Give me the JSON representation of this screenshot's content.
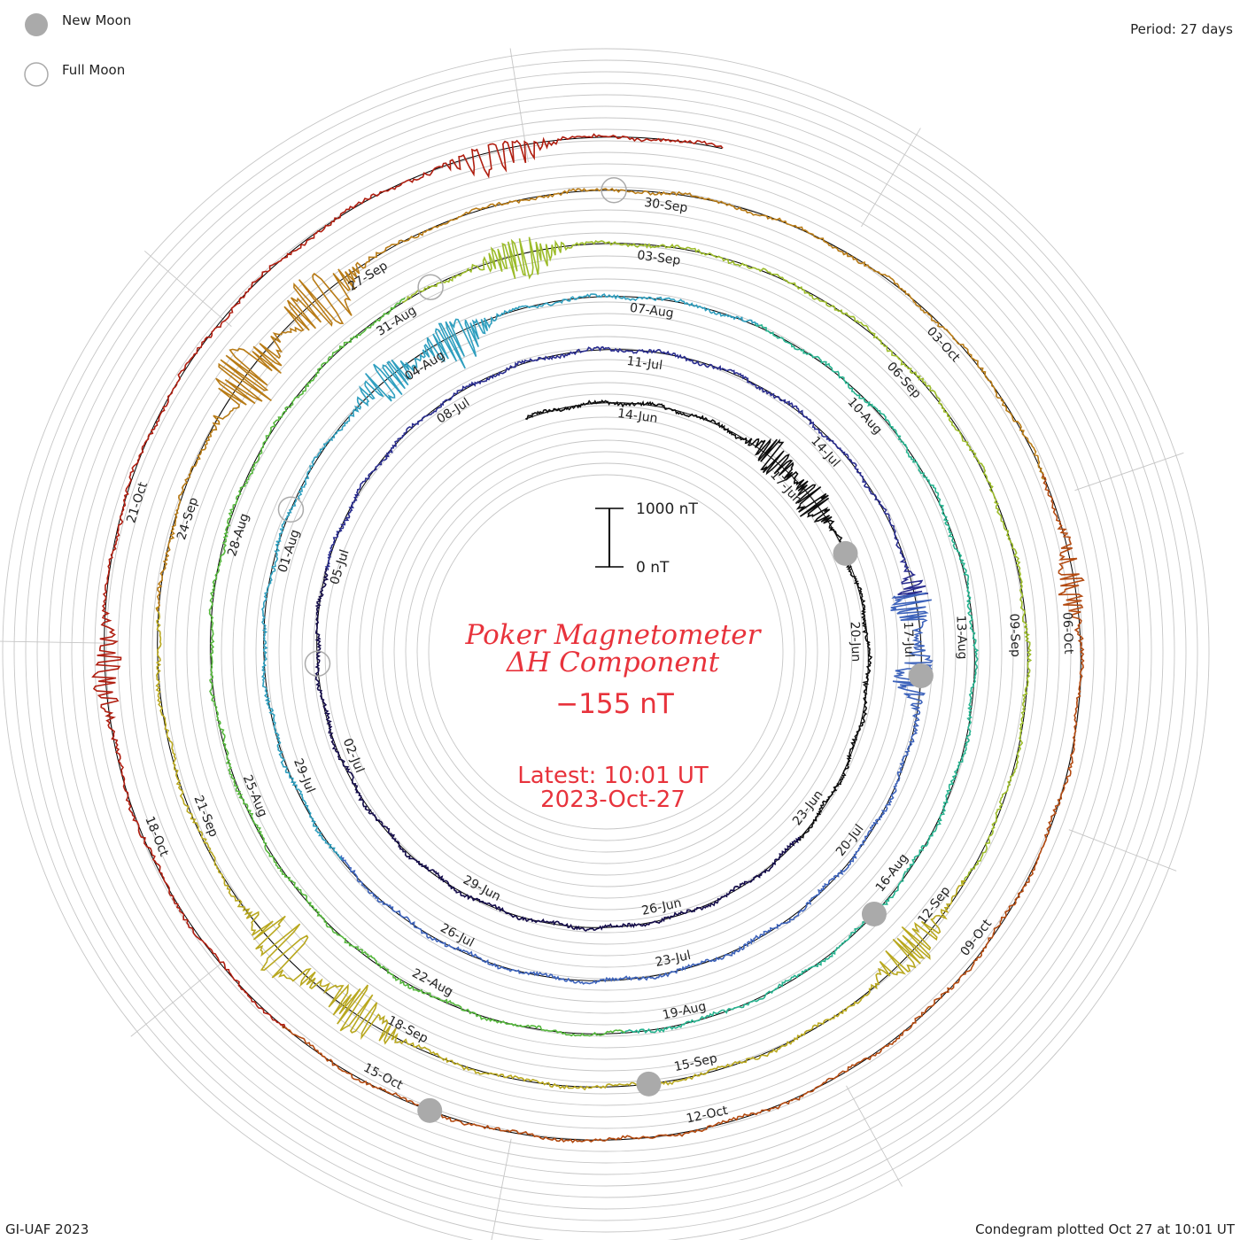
{
  "header": {
    "period_label": "Period: 27 days"
  },
  "legend": {
    "new_moon_label": "New Moon",
    "full_moon_label": "Full Moon",
    "new_moon_color": "#aaaaaa",
    "full_moon_color": "#aaaaaa"
  },
  "footer": {
    "credit": "GI-UAF 2023",
    "plotted": "Condegram plotted Oct 27 at 10:01 UT"
  },
  "center": {
    "title_line1": "Poker Magnetometer",
    "title_line2": "ΔH Component",
    "current_value": "−155 nT",
    "latest_line1": "Latest: 10:01 UT",
    "latest_line2": "2023-Oct-27",
    "text_color": "#e8333c"
  },
  "scale_bar": {
    "top_label": "1000 nT",
    "bottom_label": "0 nT"
  },
  "chart_data": {
    "type": "condegram",
    "title": "Poker Magnetometer ΔH Component",
    "period_days": 27,
    "start_date": "2023-06-12",
    "end_date": "2023-10-27",
    "latest_value_nT": -155,
    "scale_nT": [
      0,
      1000
    ],
    "date_labels": [
      "14-Jun",
      "17-Jun",
      "20-Jun",
      "23-Jun",
      "26-Jun",
      "29-Jun",
      "02-Jul",
      "05-Jul",
      "08-Jul",
      "11-Jul",
      "14-Jul",
      "17-Jul",
      "20-Jul",
      "23-Jul",
      "26-Jul",
      "29-Jul",
      "01-Aug",
      "04-Aug",
      "07-Aug",
      "10-Aug",
      "13-Aug",
      "16-Aug",
      "19-Aug",
      "22-Aug",
      "25-Aug",
      "28-Aug",
      "31-Aug",
      "03-Sep",
      "06-Sep",
      "09-Sep",
      "12-Sep",
      "15-Sep",
      "18-Sep",
      "21-Sep",
      "24-Sep",
      "27-Sep",
      "30-Sep",
      "03-Oct",
      "06-Oct",
      "09-Oct",
      "12-Oct",
      "15-Oct",
      "18-Oct",
      "21-Oct"
    ],
    "new_moons": [
      "2023-06-18",
      "2023-07-17",
      "2023-08-16",
      "2023-09-15",
      "2023-10-14"
    ],
    "full_moons": [
      "2023-07-03",
      "2023-08-01",
      "2023-08-31",
      "2023-09-29"
    ],
    "colors": [
      "#0d0d0d",
      "#140c4a",
      "#2a2d8f",
      "#3d63bb",
      "#2f9fbf",
      "#26b38f",
      "#55b83c",
      "#9cbc2a",
      "#b9a81f",
      "#b87b16",
      "#b34a10",
      "#b01e10"
    ],
    "disturbances": [
      {
        "date": "2023-06-16",
        "min_nT": -300,
        "max_nT": 400
      },
      {
        "date": "2023-06-17",
        "min_nT": -350,
        "max_nT": 300
      },
      {
        "date": "2023-07-16",
        "min_nT": -450,
        "max_nT": 250
      },
      {
        "date": "2023-07-17",
        "min_nT": -500,
        "max_nT": 200
      },
      {
        "date": "2023-08-03",
        "min_nT": -400,
        "max_nT": 350
      },
      {
        "date": "2023-08-04",
        "min_nT": -650,
        "max_nT": 300
      },
      {
        "date": "2023-09-01",
        "min_nT": -450,
        "max_nT": 350
      },
      {
        "date": "2023-09-12",
        "min_nT": -500,
        "max_nT": 300
      },
      {
        "date": "2023-09-18",
        "min_nT": -550,
        "max_nT": 400
      },
      {
        "date": "2023-09-19",
        "min_nT": -600,
        "max_nT": 450
      },
      {
        "date": "2023-09-25",
        "min_nT": -700,
        "max_nT": 550
      },
      {
        "date": "2023-09-26",
        "min_nT": -650,
        "max_nT": 500
      },
      {
        "date": "2023-10-05",
        "min_nT": -300,
        "max_nT": 200
      },
      {
        "date": "2023-10-19",
        "min_nT": -350,
        "max_nT": 200
      },
      {
        "date": "2023-10-25",
        "min_nT": -500,
        "max_nT": 150
      }
    ]
  }
}
